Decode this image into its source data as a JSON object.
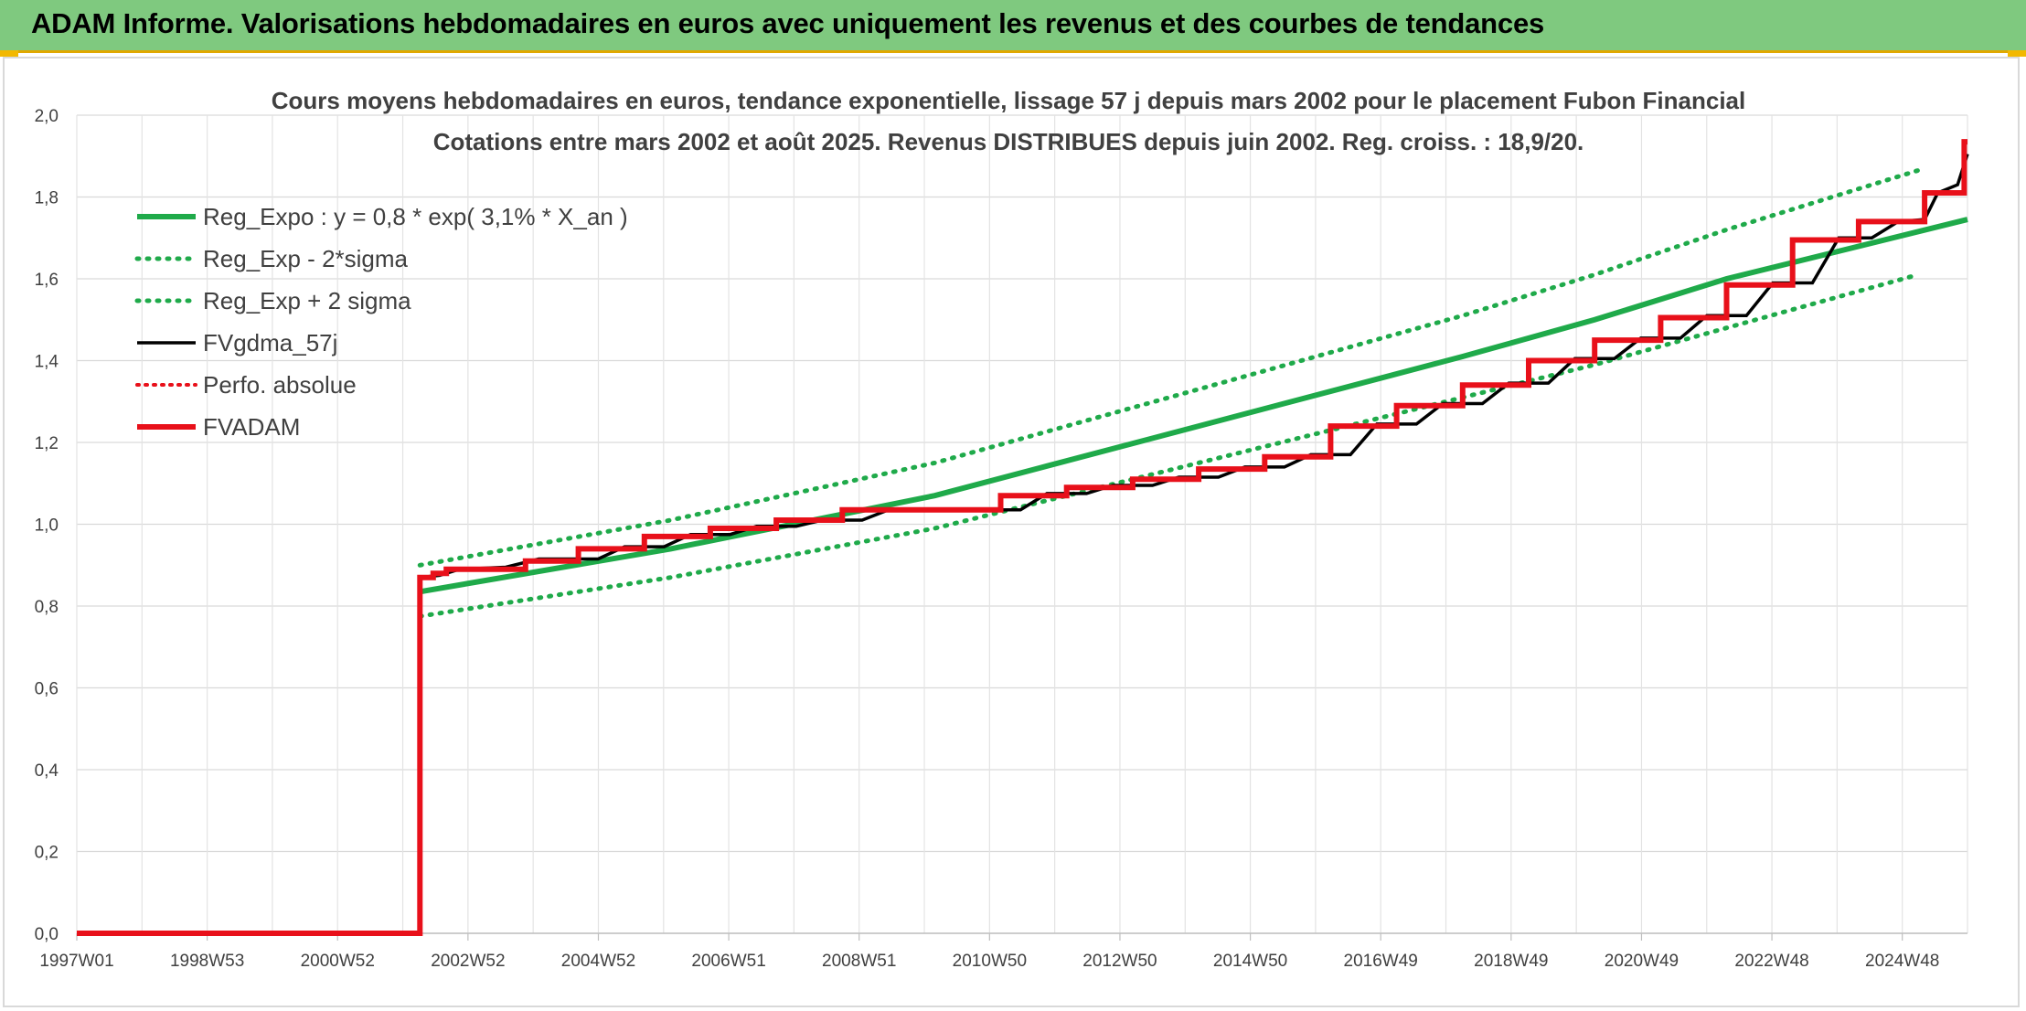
{
  "header": {
    "title": "ADAM Informe. Valorisations hebdomadaires en euros avec uniquement les revenus et des courbes de tendances"
  },
  "chart_data": {
    "type": "line",
    "title": "Cours moyens hebdomadaires en euros, tendance exponentielle, lissage 57 j depuis mars 2002 pour le placement Fubon Financial",
    "subtitle": "Cotations entre mars 2002 et août 2025. Revenus DISTRIBUES depuis juin 2002. Reg. croiss. : 18,9/20.",
    "x_tick_labels": [
      "1997W01",
      "1998W53",
      "2000W52",
      "2002W52",
      "2004W52",
      "2006W51",
      "2008W51",
      "2010W50",
      "2012W50",
      "2014W50",
      "2016W49",
      "2018W49",
      "2020W49",
      "2022W48",
      "2024W48"
    ],
    "x_range": [
      1997.0,
      2025.65
    ],
    "ylim": [
      0,
      2.0
    ],
    "y_ticks": [
      "0,0",
      "0,2",
      "0,4",
      "0,6",
      "0,8",
      "1,0",
      "1,2",
      "1,4",
      "1,6",
      "1,8",
      "2,0"
    ],
    "grid": true,
    "legend_position": "top-left",
    "colors": {
      "reg": "#1faa4a",
      "fvgdma": "#000000",
      "fvadam": "#e8101a",
      "perfo": "#e8101a"
    },
    "series": [
      {
        "name": "Reg_Expo : y = 0,8 * exp( 3,1% *  X_an )",
        "style": "solid-green",
        "points": [
          [
            2002.2,
            0.835
          ],
          [
            2006,
            0.94
          ],
          [
            2010,
            1.07
          ],
          [
            2014,
            1.24
          ],
          [
            2018,
            1.41
          ],
          [
            2020,
            1.5
          ],
          [
            2022,
            1.6
          ],
          [
            2025.65,
            1.745
          ]
        ]
      },
      {
        "name": "Reg_Exp - 2*sigma",
        "style": "dotted-green",
        "points": [
          [
            2002.2,
            0.775
          ],
          [
            2006,
            0.87
          ],
          [
            2010,
            0.99
          ],
          [
            2014,
            1.15
          ],
          [
            2018,
            1.31
          ],
          [
            2020,
            1.39
          ],
          [
            2022,
            1.48
          ],
          [
            2024.9,
            1.61
          ]
        ]
      },
      {
        "name": "Reg_Exp + 2 sigma",
        "style": "dotted-green",
        "points": [
          [
            2002.2,
            0.9
          ],
          [
            2006,
            1.01
          ],
          [
            2010,
            1.15
          ],
          [
            2014,
            1.33
          ],
          [
            2018,
            1.51
          ],
          [
            2020,
            1.61
          ],
          [
            2022,
            1.72
          ],
          [
            2025.0,
            1.87
          ]
        ]
      },
      {
        "name": "FVgdma_57j",
        "style": "solid-black",
        "points": [
          [
            2002.2,
            0.87
          ],
          [
            2002.5,
            0.875
          ],
          [
            2002.8,
            0.89
          ],
          [
            2003.5,
            0.895
          ],
          [
            2004,
            0.915
          ],
          [
            2004.9,
            0.915
          ],
          [
            2005.3,
            0.945
          ],
          [
            2005.9,
            0.945
          ],
          [
            2006.3,
            0.975
          ],
          [
            2006.9,
            0.975
          ],
          [
            2007.3,
            0.995
          ],
          [
            2007.9,
            0.995
          ],
          [
            2008.3,
            1.01
          ],
          [
            2008.9,
            1.01
          ],
          [
            2009.3,
            1.035
          ],
          [
            2011.3,
            1.035
          ],
          [
            2011.7,
            1.075
          ],
          [
            2012.3,
            1.075
          ],
          [
            2012.7,
            1.095
          ],
          [
            2013.3,
            1.095
          ],
          [
            2013.7,
            1.115
          ],
          [
            2014.3,
            1.115
          ],
          [
            2014.7,
            1.14
          ],
          [
            2015.3,
            1.14
          ],
          [
            2015.7,
            1.17
          ],
          [
            2016.3,
            1.17
          ],
          [
            2016.7,
            1.245
          ],
          [
            2017.3,
            1.245
          ],
          [
            2017.7,
            1.295
          ],
          [
            2018.3,
            1.295
          ],
          [
            2018.7,
            1.345
          ],
          [
            2019.3,
            1.345
          ],
          [
            2019.7,
            1.405
          ],
          [
            2020.3,
            1.405
          ],
          [
            2020.7,
            1.455
          ],
          [
            2021.3,
            1.455
          ],
          [
            2021.7,
            1.51
          ],
          [
            2022.3,
            1.51
          ],
          [
            2022.7,
            1.59
          ],
          [
            2023.3,
            1.59
          ],
          [
            2023.7,
            1.7
          ],
          [
            2024.2,
            1.7
          ],
          [
            2024.6,
            1.74
          ],
          [
            2025.0,
            1.745
          ],
          [
            2025.2,
            1.81
          ],
          [
            2025.5,
            1.83
          ],
          [
            2025.65,
            1.905
          ]
        ]
      },
      {
        "name": "Perfo. absolue",
        "style": "dotted-red",
        "points": []
      },
      {
        "name": "FVADAM",
        "style": "solid-red",
        "points": [
          [
            1997.0,
            0
          ],
          [
            2002.2,
            0
          ],
          [
            2002.2,
            0.87
          ],
          [
            2002.4,
            0.87
          ],
          [
            2002.4,
            0.88
          ],
          [
            2002.6,
            0.88
          ],
          [
            2002.6,
            0.89
          ],
          [
            2003.8,
            0.89
          ],
          [
            2003.8,
            0.91
          ],
          [
            2004.6,
            0.91
          ],
          [
            2004.6,
            0.94
          ],
          [
            2005.6,
            0.94
          ],
          [
            2005.6,
            0.97
          ],
          [
            2006.6,
            0.97
          ],
          [
            2006.6,
            0.99
          ],
          [
            2007.6,
            0.99
          ],
          [
            2007.6,
            1.01
          ],
          [
            2008.6,
            1.01
          ],
          [
            2008.6,
            1.035
          ],
          [
            2011.0,
            1.035
          ],
          [
            2011.0,
            1.07
          ],
          [
            2012.0,
            1.07
          ],
          [
            2012.0,
            1.09
          ],
          [
            2013.0,
            1.09
          ],
          [
            2013.0,
            1.11
          ],
          [
            2014.0,
            1.11
          ],
          [
            2014.0,
            1.135
          ],
          [
            2015.0,
            1.135
          ],
          [
            2015.0,
            1.165
          ],
          [
            2016.0,
            1.165
          ],
          [
            2016.0,
            1.24
          ],
          [
            2017.0,
            1.24
          ],
          [
            2017.0,
            1.29
          ],
          [
            2018.0,
            1.29
          ],
          [
            2018.0,
            1.34
          ],
          [
            2019.0,
            1.34
          ],
          [
            2019.0,
            1.4
          ],
          [
            2020.0,
            1.4
          ],
          [
            2020.0,
            1.45
          ],
          [
            2021.0,
            1.45
          ],
          [
            2021.0,
            1.505
          ],
          [
            2022.0,
            1.505
          ],
          [
            2022.0,
            1.585
          ],
          [
            2023.0,
            1.585
          ],
          [
            2023.0,
            1.695
          ],
          [
            2024.0,
            1.695
          ],
          [
            2024.0,
            1.74
          ],
          [
            2025.0,
            1.74
          ],
          [
            2025.0,
            1.81
          ],
          [
            2025.6,
            1.81
          ],
          [
            2025.6,
            1.935
          ],
          [
            2025.65,
            1.935
          ]
        ]
      }
    ]
  }
}
